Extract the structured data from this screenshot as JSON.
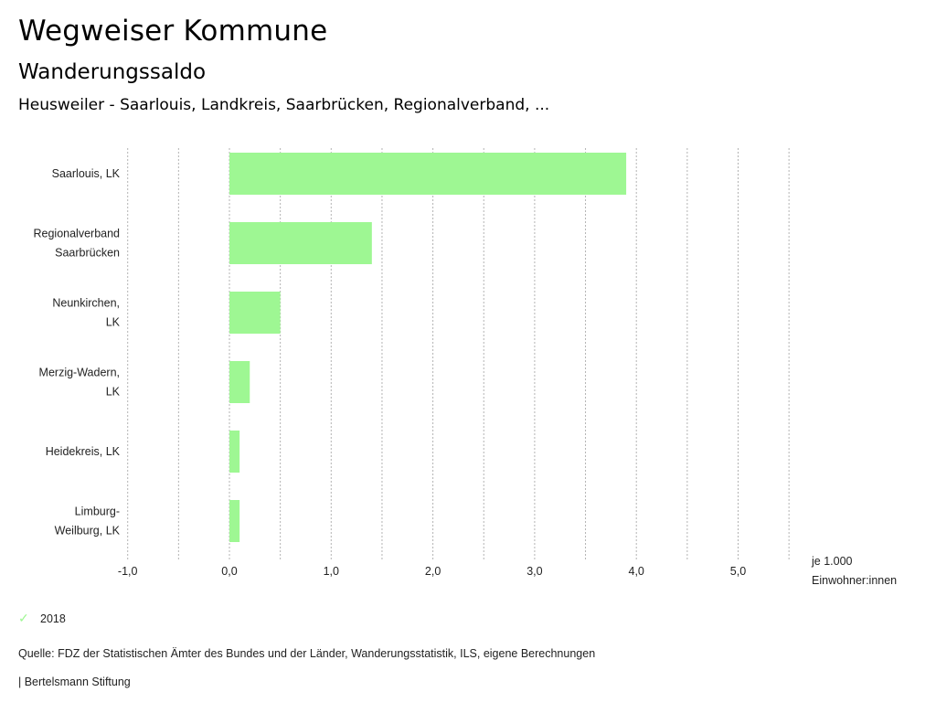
{
  "header": {
    "title": "Wegweiser Kommune",
    "subtitle": "Wanderungssaldo",
    "subsubtitle": "Heusweiler - Saarlouis, Landkreis, Saarbrücken, Regionalverband, ..."
  },
  "chart_data": {
    "type": "bar",
    "orientation": "horizontal",
    "categories": [
      [
        "Saarlouis, LK"
      ],
      [
        "Regionalverband",
        "Saarbrücken"
      ],
      [
        "Neunkirchen,",
        "LK"
      ],
      [
        "Merzig-Wadern,",
        "LK"
      ],
      [
        "Heidekreis, LK"
      ],
      [
        "Limburg-",
        "Weilburg, LK"
      ]
    ],
    "series": [
      {
        "name": "2018",
        "values": [
          3.9,
          1.4,
          0.5,
          0.2,
          0.1,
          0.1
        ],
        "color": "#9ef793"
      }
    ],
    "xlim": [
      -1.0,
      5.5
    ],
    "xticks": [
      -1.0,
      0.0,
      1.0,
      2.0,
      3.0,
      4.0,
      5.0
    ],
    "xtick_labels": [
      "-1,0",
      "0,0",
      "1,0",
      "2,0",
      "3,0",
      "4,0",
      "5,0"
    ],
    "gridlines": [
      -1.0,
      -0.5,
      0.0,
      0.5,
      1.0,
      1.5,
      2.0,
      2.5,
      3.0,
      3.5,
      4.0,
      4.5,
      5.0,
      5.5
    ],
    "grid": true,
    "xlabel_lines": [
      "je 1.000",
      "Einwohner:innen"
    ],
    "legend_position": "bottom-left"
  },
  "legend": {
    "label": "2018",
    "icon": "check-icon"
  },
  "footer": {
    "source": "Quelle: FDZ der Statistischen Ämter des Bundes und der Länder, Wanderungsstatistik, ILS, eigene Berechnungen",
    "brand": "| Bertelsmann Stiftung"
  }
}
